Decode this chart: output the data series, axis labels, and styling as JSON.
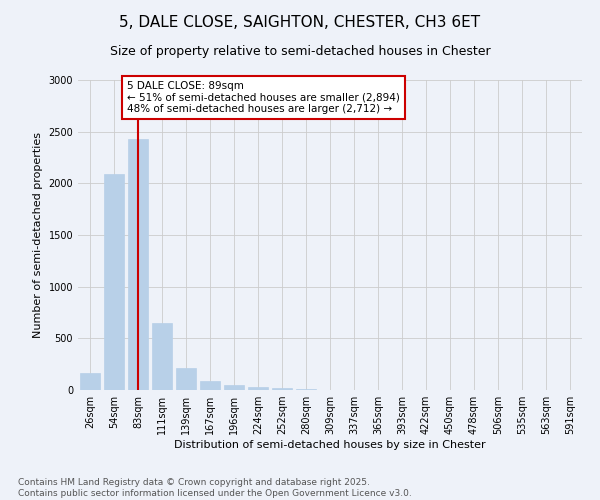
{
  "title": "5, DALE CLOSE, SAIGHTON, CHESTER, CH3 6ET",
  "subtitle": "Size of property relative to semi-detached houses in Chester",
  "xlabel": "Distribution of semi-detached houses by size in Chester",
  "ylabel": "Number of semi-detached properties",
  "categories": [
    "26sqm",
    "54sqm",
    "83sqm",
    "111sqm",
    "139sqm",
    "167sqm",
    "196sqm",
    "224sqm",
    "252sqm",
    "280sqm",
    "309sqm",
    "337sqm",
    "365sqm",
    "393sqm",
    "422sqm",
    "450sqm",
    "478sqm",
    "506sqm",
    "535sqm",
    "563sqm",
    "591sqm"
  ],
  "values": [
    165,
    2090,
    2430,
    650,
    210,
    90,
    45,
    25,
    15,
    5,
    2,
    0,
    0,
    0,
    0,
    0,
    0,
    0,
    0,
    0,
    0
  ],
  "bar_color": "#b8d0e8",
  "bar_edge_color": "#b8d0e8",
  "highlight_bar_index": 2,
  "highlight_line_color": "#cc0000",
  "annotation_text": "5 DALE CLOSE: 89sqm\n← 51% of semi-detached houses are smaller (2,894)\n48% of semi-detached houses are larger (2,712) →",
  "annotation_box_color": "#ffffff",
  "annotation_box_edge_color": "#cc0000",
  "ylim": [
    0,
    3000
  ],
  "yticks": [
    0,
    500,
    1000,
    1500,
    2000,
    2500,
    3000
  ],
  "grid_color": "#cccccc",
  "background_color": "#eef2f9",
  "footer_line1": "Contains HM Land Registry data © Crown copyright and database right 2025.",
  "footer_line2": "Contains public sector information licensed under the Open Government Licence v3.0.",
  "title_fontsize": 11,
  "subtitle_fontsize": 9,
  "xlabel_fontsize": 8,
  "ylabel_fontsize": 8,
  "tick_fontsize": 7,
  "footer_fontsize": 6.5,
  "annotation_fontsize": 7.5
}
